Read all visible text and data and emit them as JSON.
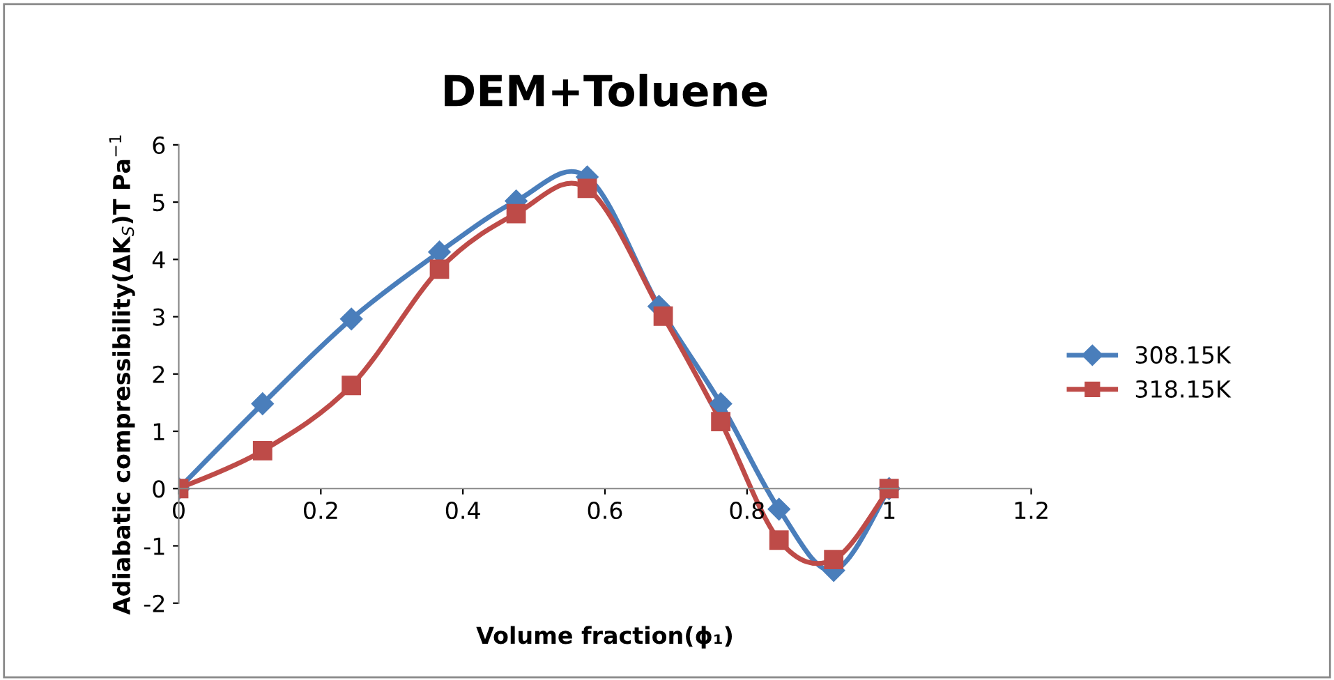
{
  "chart_data": {
    "type": "line",
    "title": "DEM+Toluene",
    "xlabel": "Volume fraction(ϕ₁)",
    "ylabel": "Adiabatic compressibility(ΔK$_{S}$)T Pa$^{−1}$",
    "xlim": [
      0,
      1.2
    ],
    "xticks": [
      0,
      0.2,
      0.4,
      0.6,
      0.8,
      1,
      1.2
    ],
    "ylim": [
      -2,
      6
    ],
    "yticks": [
      -2,
      -1,
      0,
      1,
      2,
      3,
      4,
      5,
      6
    ],
    "grid": false,
    "legend": "right",
    "series": [
      {
        "name": "308.15K",
        "color": "#4a7ebb",
        "marker": "diamond",
        "x": [
          0,
          0.118,
          0.243,
          0.367,
          0.475,
          0.575,
          0.676,
          0.763,
          0.845,
          0.922,
          1
        ],
        "values": [
          0,
          1.48,
          2.96,
          4.13,
          5.02,
          5.44,
          3.18,
          1.48,
          -0.36,
          -1.43,
          0
        ]
      },
      {
        "name": "318.15K",
        "color": "#be4b48",
        "marker": "square",
        "x": [
          0,
          0.118,
          0.243,
          0.367,
          0.475,
          0.575,
          0.682,
          0.763,
          0.845,
          0.922,
          1
        ],
        "values": [
          0,
          0.66,
          1.8,
          3.83,
          4.8,
          5.24,
          3.01,
          1.17,
          -0.9,
          -1.24,
          0
        ]
      }
    ]
  }
}
